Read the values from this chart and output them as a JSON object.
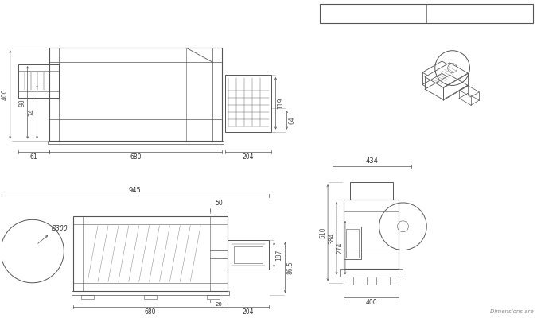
{
  "bg_color": "#ffffff",
  "line_color": "#555555",
  "text_color": "#333333",
  "fig_width": 6.8,
  "fig_height": 4.0,
  "dpi": 100,
  "footer_text": "Dimensions are"
}
